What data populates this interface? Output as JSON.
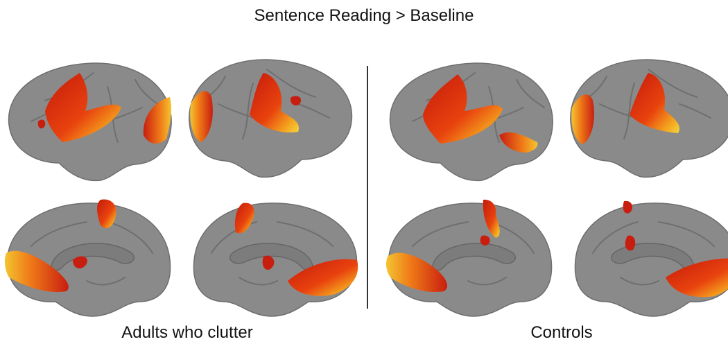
{
  "title": "Sentence Reading > Baseline",
  "panels": [
    {
      "label": "Adults who clutter"
    },
    {
      "label": "Controls"
    }
  ]
}
